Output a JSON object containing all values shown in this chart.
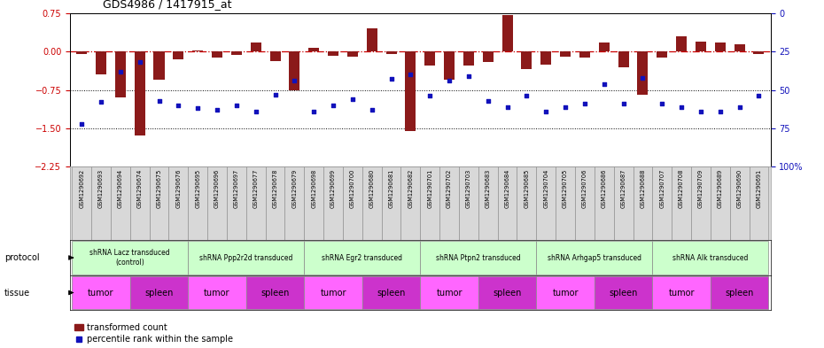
{
  "title": "GDS4986 / 1417915_at",
  "samples": [
    "GSM1290692",
    "GSM1290693",
    "GSM1290694",
    "GSM1290674",
    "GSM1290675",
    "GSM1290676",
    "GSM1290695",
    "GSM1290696",
    "GSM1290697",
    "GSM1290677",
    "GSM1290678",
    "GSM1290679",
    "GSM1290698",
    "GSM1290699",
    "GSM1290700",
    "GSM1290680",
    "GSM1290681",
    "GSM1290682",
    "GSM1290701",
    "GSM1290702",
    "GSM1290703",
    "GSM1290683",
    "GSM1290684",
    "GSM1290685",
    "GSM1290704",
    "GSM1290705",
    "GSM1290706",
    "GSM1290686",
    "GSM1290687",
    "GSM1290688",
    "GSM1290707",
    "GSM1290708",
    "GSM1290709",
    "GSM1290689",
    "GSM1290690",
    "GSM1290691"
  ],
  "red_values": [
    -0.05,
    -0.45,
    -0.9,
    -1.65,
    -0.55,
    -0.15,
    0.03,
    -0.12,
    -0.06,
    0.18,
    -0.18,
    -0.75,
    0.08,
    -0.08,
    -0.1,
    0.45,
    -0.04,
    -1.55,
    -0.28,
    -0.55,
    -0.28,
    -0.2,
    0.72,
    -0.35,
    -0.25,
    -0.1,
    -0.12,
    0.18,
    -0.3,
    -0.85,
    -0.12,
    0.3,
    0.2,
    0.18,
    0.15,
    -0.05
  ],
  "blue_values": [
    72,
    58,
    38,
    32,
    57,
    60,
    62,
    63,
    60,
    64,
    53,
    44,
    64,
    60,
    56,
    63,
    43,
    40,
    54,
    44,
    41,
    57,
    61,
    54,
    64,
    61,
    59,
    46,
    59,
    42,
    59,
    61,
    64,
    64,
    61,
    54
  ],
  "protocols": [
    {
      "label": "shRNA Lacz transduced\n(control)",
      "start": 0,
      "end": 5,
      "color": "#ccffcc"
    },
    {
      "label": "shRNA Ppp2r2d transduced",
      "start": 6,
      "end": 11,
      "color": "#ccffcc"
    },
    {
      "label": "shRNA Egr2 transduced",
      "start": 12,
      "end": 17,
      "color": "#ccffcc"
    },
    {
      "label": "shRNA Ptpn2 transduced",
      "start": 18,
      "end": 23,
      "color": "#ccffcc"
    },
    {
      "label": "shRNA Arhgap5 transduced",
      "start": 24,
      "end": 29,
      "color": "#ccffcc"
    },
    {
      "label": "shRNA Alk transduced",
      "start": 30,
      "end": 35,
      "color": "#ccffcc"
    }
  ],
  "tissues": [
    {
      "label": "tumor",
      "start": 0,
      "end": 2,
      "color": "#ff66ff"
    },
    {
      "label": "spleen",
      "start": 3,
      "end": 5,
      "color": "#cc33cc"
    },
    {
      "label": "tumor",
      "start": 6,
      "end": 8,
      "color": "#ff66ff"
    },
    {
      "label": "spleen",
      "start": 9,
      "end": 11,
      "color": "#cc33cc"
    },
    {
      "label": "tumor",
      "start": 12,
      "end": 14,
      "color": "#ff66ff"
    },
    {
      "label": "spleen",
      "start": 15,
      "end": 17,
      "color": "#cc33cc"
    },
    {
      "label": "tumor",
      "start": 18,
      "end": 20,
      "color": "#ff66ff"
    },
    {
      "label": "spleen",
      "start": 21,
      "end": 23,
      "color": "#cc33cc"
    },
    {
      "label": "tumor",
      "start": 24,
      "end": 26,
      "color": "#ff66ff"
    },
    {
      "label": "spleen",
      "start": 27,
      "end": 29,
      "color": "#cc33cc"
    },
    {
      "label": "tumor",
      "start": 30,
      "end": 32,
      "color": "#ff66ff"
    },
    {
      "label": "spleen",
      "start": 33,
      "end": 35,
      "color": "#cc33cc"
    }
  ],
  "y_ticks_left": [
    0.75,
    0,
    -0.75,
    -1.5,
    -2.25
  ],
  "y_ticks_right": [
    100,
    75,
    50,
    25,
    0
  ],
  "bar_color": "#8B1A1A",
  "dot_color": "#1111BB",
  "zero_line_color": "#CC0000",
  "sample_bg": "#d8d8d8",
  "sample_border": "#999999",
  "label_color_left": "#CC0000",
  "label_color_right": "#1111BB"
}
